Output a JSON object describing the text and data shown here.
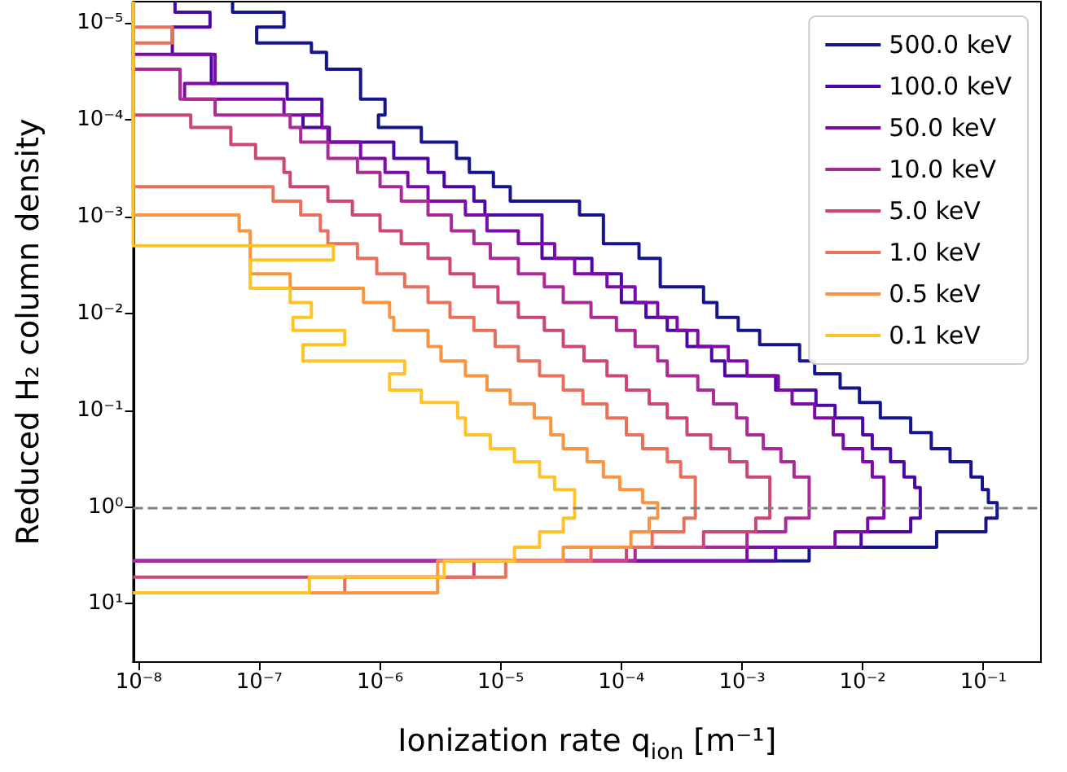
{
  "chart_data": {
    "type": "step",
    "xlabel": "Ionization rate q$_{ion}$ [m⁻¹]",
    "ylabel": "Reduced H₂ column density",
    "log": "xy",
    "xlim": [
      9e-09,
      0.3
    ],
    "ylim": [
      40,
      6e-06
    ],
    "xticks": [
      {
        "value": 1e-08,
        "label": "10⁻⁸"
      },
      {
        "value": 1e-07,
        "label": "10⁻⁷"
      },
      {
        "value": 1e-06,
        "label": "10⁻⁶"
      },
      {
        "value": 1e-05,
        "label": "10⁻⁵"
      },
      {
        "value": 0.0001,
        "label": "10⁻⁴"
      },
      {
        "value": 0.001,
        "label": "10⁻³"
      },
      {
        "value": 0.01,
        "label": "10⁻²"
      },
      {
        "value": 0.1,
        "label": "10⁻¹"
      }
    ],
    "yticks": [
      {
        "value": 1e-05,
        "label": "10⁻⁵"
      },
      {
        "value": 0.0001,
        "label": "10⁻⁴"
      },
      {
        "value": 0.001,
        "label": "10⁻³"
      },
      {
        "value": 0.01,
        "label": "10⁻²"
      },
      {
        "value": 0.1,
        "label": "10⁻¹"
      },
      {
        "value": 1,
        "label": "10⁰"
      },
      {
        "value": 10,
        "label": "10¹"
      }
    ],
    "legend": "top right",
    "ref_lines": [
      {
        "axis": "y",
        "value": 1,
        "color": "#808080",
        "line_style": "dashed"
      }
    ],
    "series": [
      {
        "name": "500.0 keV",
        "color": "#14148c",
        "x": [
          6e-08,
          1.6e-07,
          9.5e-08,
          2.7e-07,
          3.6e-07,
          6.9e-07,
          1.1e-06,
          9.7e-07,
          2.2e-06,
          4.3e-06,
          5.5e-06,
          8.7e-06,
          1.2e-05,
          4.5e-05,
          7.1e-05,
          0.00014,
          0.00021,
          0.00048,
          0.00062,
          0.00093,
          0.0014,
          0.003,
          0.004,
          0.0065,
          0.0094,
          0.014,
          0.025,
          0.037,
          0.053,
          0.079,
          0.098,
          0.11,
          0.13,
          0.105,
          0.041,
          0.0036,
          9e-09
        ],
        "values": [
          6e-06,
          7.7e-06,
          1.1e-05,
          1.6e-05,
          2e-05,
          3e-05,
          6.1e-05,
          8.9e-05,
          0.00012,
          0.00017,
          0.00025,
          0.00035,
          0.00049,
          0.00069,
          0.00096,
          0.0019,
          0.0027,
          0.0053,
          0.0077,
          0.011,
          0.015,
          0.021,
          0.031,
          0.042,
          0.059,
          0.083,
          0.12,
          0.17,
          0.25,
          0.34,
          0.49,
          0.66,
          0.9,
          1.3,
          1.8,
          2.6,
          3.6
        ]
      },
      {
        "name": "100.0 keV",
        "color": "#4c08a4",
        "x": [
          2e-08,
          3.9e-08,
          1.9e-08,
          4e-08,
          1.7e-07,
          3.3e-07,
          2.3e-07,
          3.8e-07,
          1.3e-06,
          2.5e-06,
          3.4e-06,
          6e-06,
          7.4e-06,
          2.2e-05,
          5.7e-05,
          0.0001,
          0.00016,
          0.00024,
          0.00035,
          0.00056,
          0.00072,
          0.0019,
          0.0041,
          0.0059,
          0.01,
          0.012,
          0.017,
          0.022,
          0.027,
          0.03,
          0.025,
          0.0097,
          0.0019,
          9e-09
        ],
        "values": [
          6e-06,
          7.7e-06,
          1.1e-05,
          2.1e-05,
          4.2e-05,
          6.1e-05,
          8.9e-05,
          0.00012,
          0.00017,
          0.00025,
          0.00035,
          0.00049,
          0.00069,
          0.00096,
          0.0027,
          0.0039,
          0.0077,
          0.011,
          0.015,
          0.022,
          0.031,
          0.044,
          0.062,
          0.089,
          0.12,
          0.18,
          0.25,
          0.34,
          0.49,
          0.63,
          1.3,
          1.8,
          2.6,
          3.6
        ]
      },
      {
        "name": "50.0 keV",
        "color": "#7e0ba8",
        "x": [
          9e-09,
          4.3e-08,
          2.4e-08,
          1.6e-07,
          3.3e-07,
          3.7e-07,
          6.9e-07,
          1.1e-06,
          1.7e-06,
          2.5e-06,
          5.1e-06,
          7.7e-06,
          1.4e-05,
          2.8e-05,
          4.1e-05,
          7.6e-05,
          0.00013,
          0.0002,
          0.00029,
          0.00043,
          0.00077,
          0.0011,
          0.002,
          0.0026,
          0.004,
          0.0057,
          0.0069,
          0.01,
          0.012,
          0.015,
          0.011,
          0.0059,
          0.0011,
          9e-09
        ],
        "values": [
          6e-06,
          2.1e-05,
          4.2e-05,
          6.1e-05,
          8.9e-05,
          0.00012,
          0.00017,
          0.00025,
          0.00035,
          0.00049,
          0.00069,
          0.00096,
          0.0014,
          0.0019,
          0.0027,
          0.0039,
          0.0053,
          0.0077,
          0.011,
          0.015,
          0.022,
          0.031,
          0.044,
          0.062,
          0.086,
          0.12,
          0.18,
          0.25,
          0.34,
          0.49,
          1.3,
          1.8,
          2.6,
          3.6
        ]
      },
      {
        "name": "10.0 keV",
        "color": "#aa2b96",
        "x": [
          9e-09,
          2.2e-08,
          4.3e-08,
          1.8e-07,
          2.2e-07,
          3.7e-07,
          6.5e-07,
          1e-06,
          1.5e-06,
          2.5e-06,
          3.9e-06,
          6e-06,
          8.2e-06,
          1.4e-05,
          2.3e-05,
          3.3e-05,
          5.6e-05,
          9.1e-05,
          0.00013,
          0.0002,
          0.00024,
          0.00043,
          0.00058,
          0.0009,
          0.0011,
          0.0015,
          0.0021,
          0.0027,
          0.0036,
          0.0023,
          0.0011,
          0.00013,
          9e-09
        ],
        "values": [
          6e-06,
          3e-05,
          6.1e-05,
          8.9e-05,
          0.00012,
          0.00017,
          0.00025,
          0.00035,
          0.00049,
          0.00069,
          0.00096,
          0.0014,
          0.0019,
          0.0027,
          0.0039,
          0.0053,
          0.0077,
          0.011,
          0.015,
          0.022,
          0.031,
          0.044,
          0.062,
          0.086,
          0.12,
          0.18,
          0.25,
          0.34,
          0.49,
          1.3,
          1.8,
          2.6,
          3.6
        ]
      },
      {
        "name": "5.0 keV",
        "color": "#cc4778",
        "x": [
          9e-09,
          2.7e-08,
          5.8e-08,
          9.3e-08,
          1.6e-07,
          1.8e-07,
          3.7e-07,
          5.9e-07,
          1e-06,
          1.5e-06,
          2.5e-06,
          3.8e-06,
          6e-06,
          9.5e-06,
          1.4e-05,
          2.3e-05,
          3.3e-05,
          4.9e-05,
          7.6e-05,
          0.00011,
          0.00017,
          0.00024,
          0.00035,
          0.00055,
          0.00079,
          0.0011,
          0.0017,
          0.0013,
          0.00048,
          0.00011,
          6e-06,
          9e-09
        ],
        "values": [
          6e-06,
          8.9e-05,
          0.00012,
          0.00018,
          0.00025,
          0.00035,
          0.00049,
          0.00069,
          0.00096,
          0.0014,
          0.0019,
          0.0027,
          0.0039,
          0.0053,
          0.0077,
          0.011,
          0.015,
          0.022,
          0.031,
          0.044,
          0.062,
          0.086,
          0.12,
          0.18,
          0.25,
          0.34,
          0.49,
          1.3,
          1.8,
          2.6,
          3.6,
          5.3
        ]
      },
      {
        "name": "1.0 keV",
        "color": "#e8705c",
        "x": [
          9e-09,
          1.9e-08,
          9e-09,
          1.3e-07,
          2.2e-07,
          3.2e-07,
          3.7e-07,
          6.5e-07,
          9.4e-07,
          1.6e-06,
          2.5e-06,
          3.8e-06,
          6e-06,
          9e-06,
          1.4e-05,
          2.1e-05,
          3.3e-05,
          4.8e-05,
          7.6e-05,
          0.00011,
          0.00015,
          0.00024,
          0.00031,
          0.00041,
          0.00033,
          0.00018,
          5.6e-05,
          1.1e-05,
          5.1e-07,
          9e-09
        ],
        "values": [
          6e-06,
          1.1e-05,
          1.6e-05,
          0.00049,
          0.00069,
          0.00096,
          0.0014,
          0.0019,
          0.0027,
          0.0039,
          0.0053,
          0.0077,
          0.011,
          0.015,
          0.022,
          0.031,
          0.044,
          0.062,
          0.086,
          0.12,
          0.18,
          0.25,
          0.34,
          0.49,
          1.3,
          1.8,
          2.6,
          3.6,
          5.3,
          7.7
        ]
      },
      {
        "name": "0.5 keV",
        "color": "#f89540",
        "x": [
          9e-09,
          6.8e-08,
          8.4e-08,
          1.8e-07,
          7.3e-07,
          1.2e-06,
          1.3e-06,
          2.5e-06,
          3.2e-06,
          5.1e-06,
          7.7e-06,
          1.2e-05,
          1.9e-05,
          2.6e-05,
          3.3e-05,
          5.2e-05,
          7.1e-05,
          9.7e-05,
          0.00015,
          0.0002,
          0.00017,
          0.00012,
          3.3e-05,
          3e-06,
          9e-09
        ],
        "values": [
          6e-06,
          0.00096,
          0.0014,
          0.0039,
          0.0055,
          0.0077,
          0.011,
          0.015,
          0.022,
          0.031,
          0.044,
          0.062,
          0.086,
          0.12,
          0.18,
          0.25,
          0.34,
          0.49,
          0.66,
          0.9,
          1.3,
          1.8,
          2.6,
          3.6,
          7.7
        ]
      },
      {
        "name": "0.1 keV",
        "color": "#fdc328",
        "x": [
          9e-09,
          4.1e-07,
          8.4e-08,
          1.8e-07,
          2.7e-07,
          1.9e-07,
          5.1e-07,
          2.3e-07,
          1.6e-06,
          1.2e-06,
          2.2e-06,
          4.4e-06,
          5.1e-06,
          8.2e-06,
          1.3e-05,
          2.1e-05,
          2.8e-05,
          4.1e-05,
          3.3e-05,
          2.1e-05,
          1.3e-05,
          3.4e-06,
          2.6e-07,
          9e-09
        ],
        "values": [
          6e-06,
          0.002,
          0.0028,
          0.0055,
          0.0077,
          0.011,
          0.015,
          0.021,
          0.031,
          0.042,
          0.062,
          0.083,
          0.12,
          0.18,
          0.25,
          0.34,
          0.49,
          0.66,
          1.3,
          1.8,
          2.6,
          3.6,
          5.3,
          7.7
        ]
      }
    ]
  }
}
